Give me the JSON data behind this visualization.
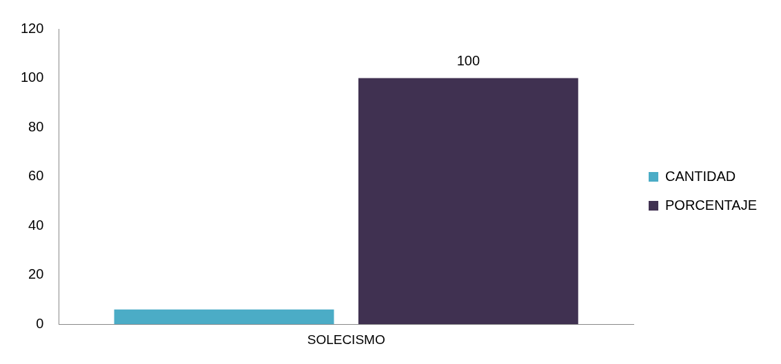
{
  "chart_data": {
    "type": "bar",
    "categories": [
      "SOLECISMO"
    ],
    "series": [
      {
        "name": "CANTIDAD",
        "color": "#4bacc6",
        "values": [
          6
        ],
        "value_labels": [
          null
        ]
      },
      {
        "name": "PORCENTAJE",
        "color": "#403151",
        "values": [
          100
        ],
        "value_labels": [
          "100"
        ]
      }
    ],
    "ylim": [
      0,
      120
    ],
    "yticks": [
      0,
      20,
      40,
      60,
      80,
      100,
      120
    ],
    "grid": false,
    "legend": "right"
  }
}
